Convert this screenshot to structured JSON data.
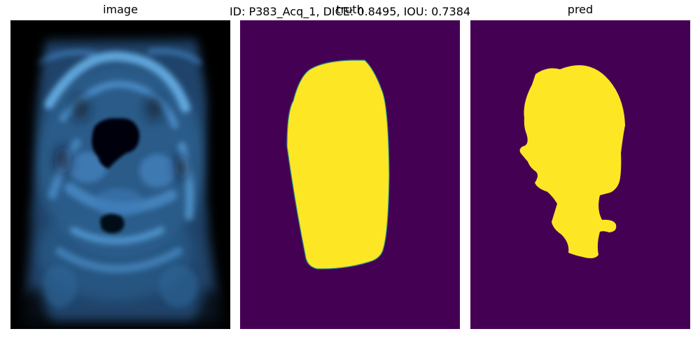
{
  "figure": {
    "suptitle": "ID: P383_Acq_1, DICE: 0.8495, IOU: 0.7384"
  },
  "panels": [
    {
      "title": "image"
    },
    {
      "title": "truth"
    },
    {
      "title": "pred"
    }
  ],
  "colors": {
    "background": "#440154",
    "foreground": "#fde725",
    "edge": "#2a8f8a",
    "scan_dark": "#000000",
    "scan_light": "#6ab6ee"
  }
}
